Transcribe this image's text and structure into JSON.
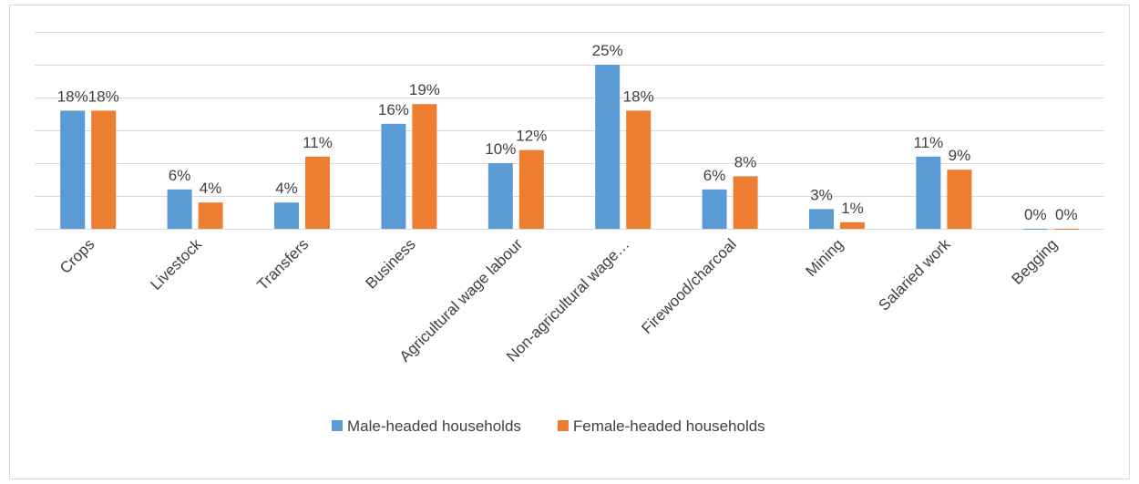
{
  "chart_data": {
    "type": "bar",
    "categories": [
      "Crops",
      "Livestock",
      "Transfers",
      "Business",
      "Agricultural wage labour",
      "Non-agricultural wage…",
      "Firewood/charcoal",
      "Mining",
      "Salaried work",
      "Begging"
    ],
    "series": [
      {
        "name": "Male-headed households",
        "color": "#5b9bd5",
        "values": [
          18,
          6,
          4,
          16,
          10,
          25,
          6,
          3,
          11,
          0
        ],
        "value_labels": [
          "18%",
          "6%",
          "4%",
          "16%",
          "10%",
          "25%",
          "6%",
          "3%",
          "11%",
          "0%"
        ]
      },
      {
        "name": "Female-headed households",
        "color": "#ed7d31",
        "values": [
          18,
          4,
          11,
          19,
          12,
          18,
          8,
          1,
          9,
          0
        ],
        "value_labels": [
          "18%",
          "4%",
          "11%",
          "19%",
          "12%",
          "18%",
          "8%",
          "1%",
          "9%",
          "0%"
        ]
      }
    ],
    "ylim": [
      0,
      30
    ],
    "yticks": [
      0,
      5,
      10,
      15,
      20,
      25,
      30
    ],
    "grid": true,
    "legend": "bottom"
  }
}
